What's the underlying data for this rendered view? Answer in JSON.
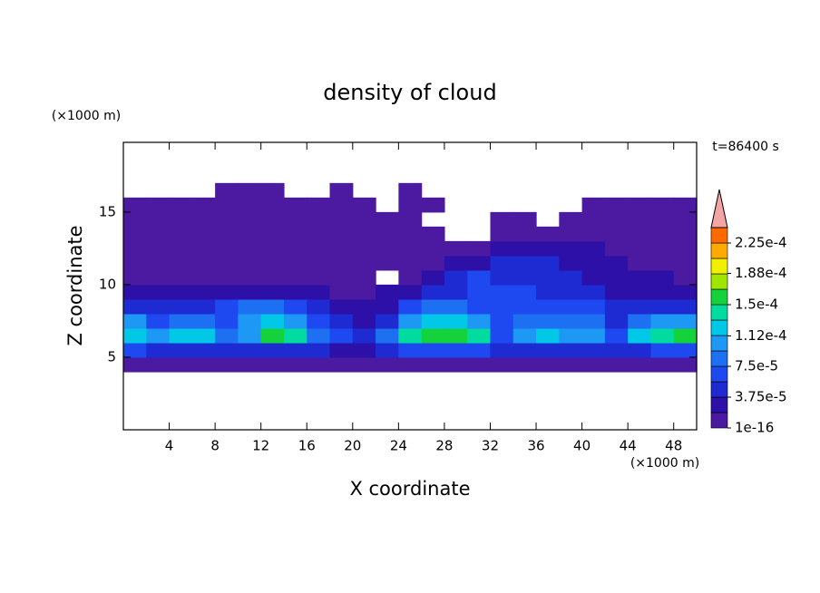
{
  "chart_data": {
    "type": "contour",
    "title": "density of cloud",
    "x_label": "X coordinate",
    "y_label": "Z coordinate",
    "x_unit": "(×1000 m)",
    "y_unit": "(×1000 m)",
    "time_label": "t=86400 s",
    "xlim": [
      0,
      50
    ],
    "ylim": [
      0,
      19.8
    ],
    "xticks": [
      4,
      8,
      12,
      16,
      20,
      24,
      28,
      32,
      36,
      40,
      44,
      48
    ],
    "yticks": [
      5,
      10,
      15
    ],
    "x": [
      1,
      3,
      5,
      7,
      9,
      11,
      13,
      15,
      17,
      19,
      21,
      23,
      25,
      27,
      29,
      31,
      33,
      35,
      37,
      39,
      41,
      43,
      45,
      47,
      49
    ],
    "z": [
      4.5,
      5.5,
      6.5,
      7.5,
      8.5,
      9.5,
      10.5,
      11.5,
      12.5,
      13.5,
      14.5,
      15.5,
      16.5
    ],
    "values": [
      [
        1e-05,
        1e-05,
        1e-05,
        1e-05,
        1e-05,
        1e-05,
        1e-05,
        1e-05,
        1e-05,
        1e-05,
        1e-05,
        1e-05,
        1e-05,
        1e-05,
        1e-05,
        1e-05,
        1e-05,
        1e-05,
        1e-05,
        1e-05,
        1e-05,
        1e-05,
        1e-05,
        1e-05,
        1e-05
      ],
      [
        6e-05,
        5e-05,
        5e-05,
        4e-05,
        4e-05,
        5e-05,
        5e-05,
        5e-05,
        4e-05,
        3e-05,
        3e-05,
        4e-05,
        6e-05,
        7e-05,
        7e-05,
        6e-05,
        4e-05,
        5e-05,
        5e-05,
        5e-05,
        5e-05,
        4e-05,
        5e-05,
        6e-05,
        6e-05
      ],
      [
        0.00013,
        0.00011,
        0.00013,
        0.00012,
        9e-05,
        0.00011,
        0.00015,
        0.00014,
        9e-05,
        6e-05,
        5e-05,
        8e-05,
        0.00014,
        0.00016,
        0.000165,
        0.00014,
        6e-05,
        0.00011,
        0.00012,
        0.00011,
        0.0001,
        6e-05,
        0.00012,
        0.00014,
        0.00015
      ],
      [
        0.0001,
        7e-05,
        9e-05,
        8e-05,
        6e-05,
        0.0001,
        0.00012,
        0.00011,
        6e-05,
        4e-05,
        3e-05,
        5e-05,
        0.0001,
        0.00012,
        0.00013,
        0.0001,
        6e-05,
        9e-05,
        9e-05,
        8e-05,
        8e-05,
        5e-05,
        9e-05,
        0.0001,
        0.00011
      ],
      [
        5e-05,
        4e-05,
        4e-05,
        5e-05,
        6e-05,
        8e-05,
        8e-05,
        7e-05,
        5e-05,
        3e-05,
        2.5e-05,
        3e-05,
        6e-05,
        8e-05,
        8e-05,
        7e-05,
        6e-05,
        7e-05,
        7e-05,
        6e-05,
        6e-05,
        5e-05,
        5e-05,
        5e-05,
        5e-05
      ],
      [
        3e-05,
        2.5e-05,
        2.5e-05,
        3e-05,
        3e-05,
        3e-05,
        3e-05,
        3e-05,
        2e-05,
        1.5e-05,
        1.5e-05,
        2e-05,
        3e-05,
        4e-05,
        5e-05,
        6e-05,
        6e-05,
        6e-05,
        5e-05,
        4e-05,
        4e-05,
        3e-05,
        3e-05,
        3e-05,
        3e-05
      ],
      [
        1.5e-05,
        1.5e-05,
        1.5e-05,
        1.5e-05,
        1.5e-05,
        1.5e-05,
        1.5e-05,
        1.5e-05,
        1.5e-05,
        1e-05,
        1e-05,
        null,
        1e-05,
        2e-05,
        4e-05,
        6e-05,
        5e-05,
        5e-05,
        5e-05,
        4e-05,
        3e-05,
        2.5e-05,
        2e-05,
        2e-05,
        1.5e-05
      ],
      [
        1e-05,
        1e-05,
        1e-05,
        1e-05,
        1e-05,
        1e-05,
        1e-05,
        1e-05,
        1e-05,
        1e-05,
        1e-05,
        1e-05,
        1e-05,
        1.5e-05,
        2e-05,
        3e-05,
        4e-05,
        4e-05,
        4e-05,
        3e-05,
        3e-05,
        2e-05,
        1.5e-05,
        1e-05,
        1e-05
      ],
      [
        1e-05,
        1.5e-05,
        1e-05,
        1e-05,
        1e-05,
        1e-05,
        1e-05,
        1e-05,
        1e-05,
        1e-05,
        1e-05,
        1e-05,
        1e-05,
        1e-05,
        1e-05,
        1.5e-05,
        2e-05,
        2.5e-05,
        3e-05,
        2.5e-05,
        2e-05,
        1.5e-05,
        1e-05,
        1e-05,
        1e-05
      ],
      [
        1e-05,
        1e-05,
        1e-05,
        1e-05,
        1e-05,
        1e-05,
        1e-05,
        1e-05,
        1e-05,
        1e-05,
        1e-05,
        1e-05,
        1e-05,
        1e-05,
        null,
        null,
        1e-05,
        1e-05,
        1.5e-05,
        1.5e-05,
        1e-05,
        1e-05,
        1e-05,
        1e-05,
        1e-05
      ],
      [
        1e-05,
        1e-05,
        1e-05,
        1e-05,
        1e-05,
        1e-05,
        1e-05,
        1e-05,
        1e-05,
        1e-05,
        1e-05,
        1e-05,
        1e-05,
        null,
        null,
        null,
        1e-05,
        1e-05,
        null,
        1e-05,
        1e-05,
        1e-05,
        1e-05,
        1e-05,
        1e-05
      ],
      [
        1e-05,
        1e-05,
        1e-05,
        1e-05,
        1e-05,
        1e-05,
        1e-05,
        1e-05,
        1e-05,
        1e-05,
        1e-05,
        null,
        1e-05,
        1e-05,
        null,
        null,
        null,
        null,
        null,
        null,
        1e-05,
        1e-05,
        1e-05,
        1e-05,
        1e-05
      ],
      [
        null,
        null,
        null,
        null,
        1e-05,
        1e-05,
        1e-05,
        null,
        null,
        1e-05,
        null,
        null,
        1e-05,
        null,
        null,
        null,
        null,
        null,
        null,
        null,
        null,
        null,
        null,
        null,
        null
      ]
    ],
    "colorbar": {
      "levels": [
        1e-16,
        1.875e-05,
        3.75e-05,
        5.625e-05,
        7.5e-05,
        9.375e-05,
        0.0001125,
        0.00013125,
        0.00015,
        0.00016875,
        0.0001875,
        0.00020625,
        0.000225,
        0.00024375
      ],
      "colors": [
        "#4c1aa0",
        "#2c10a8",
        "#1e2ad2",
        "#1e48f0",
        "#1e70f2",
        "#1e98f5",
        "#00c8e6",
        "#00dca0",
        "#14d23c",
        "#a0e600",
        "#f0f000",
        "#ffaa00",
        "#ff6a00"
      ],
      "extend_color": "#f4a4a4",
      "ticks": [
        {
          "value": 1e-16,
          "label": "1e-16"
        },
        {
          "value": 3.75e-05,
          "label": "3.75e-5"
        },
        {
          "value": 7.5e-05,
          "label": "7.5e-5"
        },
        {
          "value": 0.000112,
          "label": "1.12e-4"
        },
        {
          "value": 0.00015,
          "label": "1.5e-4"
        },
        {
          "value": 0.000188,
          "label": "1.88e-4"
        },
        {
          "value": 0.000225,
          "label": "2.25e-4"
        }
      ]
    }
  }
}
